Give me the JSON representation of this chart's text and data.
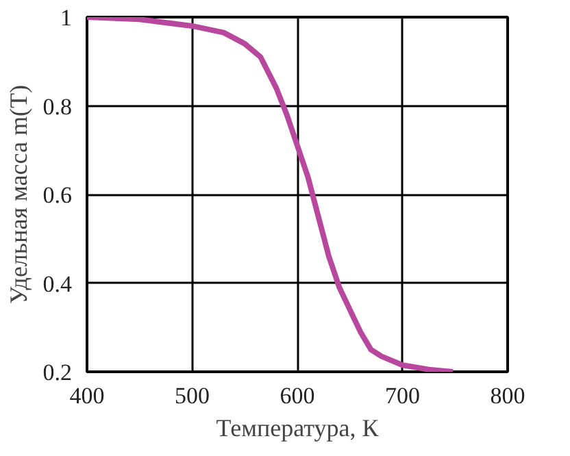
{
  "chart_data": {
    "type": "line",
    "xlabel": "Температура, К",
    "ylabel": "Удельная масса m(T)",
    "x": [
      400,
      450,
      500,
      530,
      550,
      565,
      580,
      590,
      600,
      610,
      620,
      630,
      640,
      650,
      660,
      670,
      680,
      700,
      725,
      748
    ],
    "series": [
      {
        "color": "#b8489e",
        "values": [
          1.0,
          0.995,
          0.98,
          0.965,
          0.94,
          0.91,
          0.84,
          0.78,
          0.71,
          0.64,
          0.55,
          0.46,
          0.39,
          0.34,
          0.29,
          0.25,
          0.235,
          0.215,
          0.205,
          0.2
        ]
      }
    ],
    "xlim": [
      400,
      800
    ],
    "ylim": [
      0.2,
      1
    ],
    "xticks": [
      400,
      500,
      600,
      700,
      800
    ],
    "yticks": [
      {
        "value": 0.2,
        "label": "0.2"
      },
      {
        "value": 0.4,
        "label": "0.4"
      },
      {
        "value": 0.6,
        "label": "0.6"
      },
      {
        "value": 0.8,
        "label": "0.8"
      },
      {
        "value": 1,
        "label": "1"
      }
    ],
    "grid": true,
    "marker": "none",
    "line_style": "solid"
  }
}
